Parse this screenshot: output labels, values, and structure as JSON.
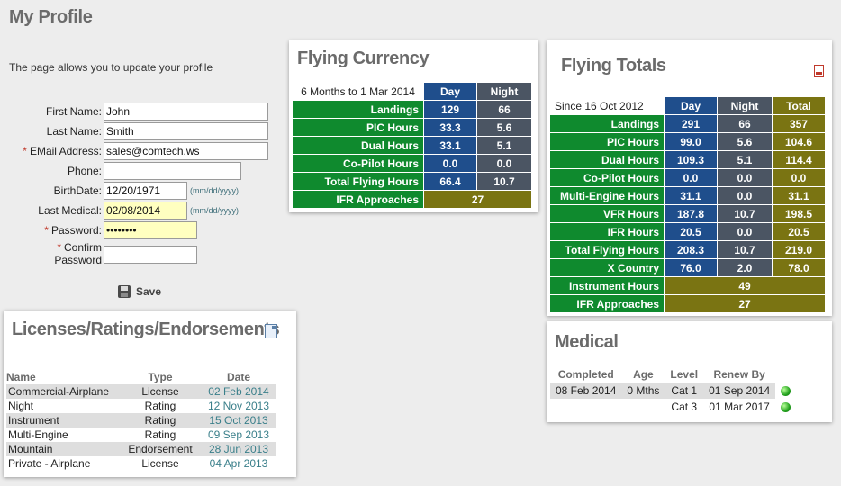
{
  "page": {
    "title": "My Profile",
    "intro": "The page allows you to update your profile"
  },
  "form": {
    "first_name_label": "First Name:",
    "first_name": "John",
    "last_name_label": "Last Name:",
    "last_name": "Smith",
    "email_label": "EMail Address:",
    "email": "sales@comtech.ws",
    "phone_label": "Phone:",
    "phone": "",
    "birthdate_label": "BirthDate:",
    "birthdate": "12/20/1971",
    "birthdate_hint": "(mm/dd/yyyy)",
    "last_medical_label": "Last Medical:",
    "last_medical": "02/08/2014",
    "last_medical_hint": "(mm/dd/yyyy)",
    "password_label": "Password:",
    "password": "••••••••",
    "confirm_label_1": "Confirm",
    "confirm_label_2": "Password",
    "confirm": "",
    "required_mark": "*",
    "save_label": "Save"
  },
  "licenses": {
    "title": "Licenses/Ratings/Endorsements",
    "headers": {
      "name": "Name",
      "type": "Type",
      "date": "Date"
    },
    "rows": [
      {
        "name": "Commercial-Airplane",
        "type": "License",
        "date": "02 Feb 2014"
      },
      {
        "name": "Night",
        "type": "Rating",
        "date": "12 Nov 2013"
      },
      {
        "name": "Instrument",
        "type": "Rating",
        "date": "15 Oct 2013"
      },
      {
        "name": "Multi-Engine",
        "type": "Rating",
        "date": "09 Sep 2013"
      },
      {
        "name": "Mountain",
        "type": "Endorsement",
        "date": "28 Jun 2013"
      },
      {
        "name": "Private - Airplane",
        "type": "License",
        "date": "04 Apr 2013"
      }
    ]
  },
  "currency": {
    "title": "Flying Currency",
    "period": "6 Months to 1 Mar 2014",
    "day": "Day",
    "night": "Night",
    "rows": [
      {
        "label": "Landings",
        "day": "129",
        "night": "66"
      },
      {
        "label": "PIC Hours",
        "day": "33.3",
        "night": "5.6"
      },
      {
        "label": "Dual Hours",
        "day": "33.1",
        "night": "5.1"
      },
      {
        "label": "Co-Pilot Hours",
        "day": "0.0",
        "night": "0.0"
      },
      {
        "label": "Total Flying Hours",
        "day": "66.4",
        "night": "10.7"
      }
    ],
    "ifr_label": "IFR Approaches",
    "ifr": "27"
  },
  "totals": {
    "title": "Flying Totals",
    "since": "Since 16 Oct 2012",
    "day": "Day",
    "night": "Night",
    "total": "Total",
    "rows": [
      {
        "label": "Landings",
        "day": "291",
        "night": "66",
        "total": "357"
      },
      {
        "label": "PIC Hours",
        "day": "99.0",
        "night": "5.6",
        "total": "104.6"
      },
      {
        "label": "Dual Hours",
        "day": "109.3",
        "night": "5.1",
        "total": "114.4"
      },
      {
        "label": "Co-Pilot Hours",
        "day": "0.0",
        "night": "0.0",
        "total": "0.0"
      },
      {
        "label": "Multi-Engine Hours",
        "day": "31.1",
        "night": "0.0",
        "total": "31.1"
      },
      {
        "label": "VFR Hours",
        "day": "187.8",
        "night": "10.7",
        "total": "198.5"
      },
      {
        "label": "IFR Hours",
        "day": "20.5",
        "night": "0.0",
        "total": "20.5"
      },
      {
        "label": "Total Flying Hours",
        "day": "208.3",
        "night": "10.7",
        "total": "219.0"
      },
      {
        "label": "X Country",
        "day": "76.0",
        "night": "2.0",
        "total": "78.0"
      }
    ],
    "instrument_label": "Instrument Hours",
    "instrument": "49",
    "ifr_label": "IFR Approaches",
    "ifr": "27"
  },
  "medical": {
    "title": "Medical",
    "headers": {
      "completed": "Completed",
      "age": "Age",
      "level": "Level",
      "renew": "Renew By"
    },
    "rows": [
      {
        "completed": "08 Feb 2014",
        "age": "0 Mths",
        "level": "Cat 1",
        "renew": "01 Sep 2014"
      },
      {
        "completed": "",
        "age": "",
        "level": "Cat 3",
        "renew": "01 Mar 2017"
      }
    ]
  },
  "colors": {
    "green": "#0f8a2e",
    "blue": "#1f4e8c",
    "slate": "#4b5563",
    "olive": "#7a7412"
  }
}
